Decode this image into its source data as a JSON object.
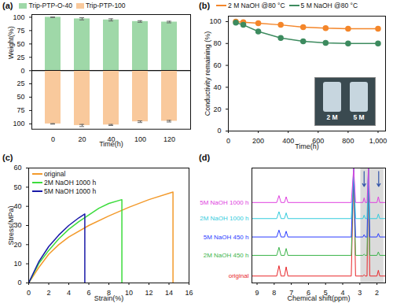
{
  "chart_data": [
    {
      "type": "bar",
      "title": "(a)",
      "x_label": "Time(h)",
      "y_label": "Weight(%)",
      "categories": [
        "0",
        "20",
        "40",
        "100",
        "120"
      ],
      "series": [
        {
          "name": "Trip-PTP-O-40",
          "color": "#9fd8a8",
          "values": [
            100,
            97,
            95,
            92,
            91
          ],
          "errors": [
            0.5,
            2,
            2,
            1.5,
            1.5
          ]
        },
        {
          "name": "Trip-PTP-100",
          "color": "#f9c99c",
          "values": [
            100,
            103,
            102,
            96,
            95
          ],
          "errors": [
            0.5,
            2,
            1,
            1.5,
            1.5
          ],
          "axis": "y2"
        }
      ],
      "ylim": [
        0,
        105
      ],
      "yticks": [
        0,
        25,
        50,
        75,
        100
      ],
      "y2lim": [
        0,
        110
      ],
      "y2ticks": [
        25,
        50,
        75,
        100
      ],
      "legend": "top"
    },
    {
      "type": "line",
      "title": "(b)",
      "x_label": "Time(h)",
      "y_label": "Conductivity remaining (%)",
      "xlim": [
        0,
        1050
      ],
      "xticks": [
        0,
        200,
        400,
        600,
        800,
        1000
      ],
      "ylim": [
        0,
        105
      ],
      "yticks": [
        0,
        20,
        40,
        60,
        80,
        100
      ],
      "marker": "circle",
      "legend": "top",
      "series": [
        {
          "name": "2 M NaOH @80 °C",
          "color": "#f4862a",
          "x": [
            50,
            100,
            200,
            350,
            500,
            650,
            800,
            1000
          ],
          "values": [
            100,
            99.5,
            98.5,
            97,
            95,
            94,
            93.5,
            93.5
          ]
        },
        {
          "name": "5 M NaOH @80 °C",
          "color": "#3d8b5f",
          "x": [
            50,
            100,
            200,
            350,
            500,
            650,
            800,
            1000
          ],
          "values": [
            99,
            97,
            91,
            85,
            82,
            80.5,
            80,
            80
          ]
        }
      ],
      "annotations": [
        "2 M",
        "5 M"
      ]
    },
    {
      "type": "line",
      "title": "(c)",
      "x_label": "Strain(%)",
      "y_label": "Stress(MPa)",
      "xlim": [
        0,
        16
      ],
      "xticks": [
        0,
        2,
        4,
        6,
        8,
        10,
        12,
        14,
        16
      ],
      "ylim": [
        0,
        60
      ],
      "yticks": [
        0,
        10,
        20,
        30,
        40,
        50,
        60
      ],
      "legend": "top-left",
      "series": [
        {
          "name": "original",
          "color": "#f39a2b",
          "x": [
            0,
            1,
            2,
            3,
            4,
            6,
            8,
            10,
            12,
            14.4,
            14.4
          ],
          "values": [
            0,
            8,
            15,
            20,
            24,
            30,
            35,
            39.5,
            43.5,
            47.5,
            0
          ]
        },
        {
          "name": "2M NaOH 1000 h",
          "color": "#3ddc3d",
          "x": [
            0,
            1,
            2,
            3,
            4,
            5,
            6,
            7,
            8,
            9.3,
            9.3
          ],
          "values": [
            0,
            10,
            17,
            23,
            28,
            32,
            35.5,
            39,
            41.5,
            43.5,
            0
          ]
        },
        {
          "name": "5M NaOH 1000 h",
          "color": "#1a1aa8",
          "x": [
            0,
            1,
            2,
            3,
            4,
            5,
            5.6,
            5.6
          ],
          "values": [
            0,
            11,
            19,
            25,
            30,
            34,
            36,
            0
          ]
        }
      ]
    },
    {
      "type": "line",
      "title": "(d)",
      "x_label": "Chemical shift(ppm)",
      "xlim": [
        9.3,
        1.5
      ],
      "xticks": [
        9,
        8,
        7,
        6,
        5,
        4,
        3,
        2
      ],
      "ylim": [
        0,
        100
      ],
      "tick_labels": "x",
      "x": [
        9.3,
        7.85,
        7.72,
        7.6,
        7.4,
        7.3,
        7.2,
        3.5,
        3.36,
        3.25,
        2.82,
        2.75,
        2.68,
        2.58,
        2.5,
        2.42,
        2.0,
        1.92,
        1.84,
        1.5
      ],
      "series": [
        {
          "name": "original",
          "color": "#e8262a",
          "values": [
            6,
            6,
            15,
            6,
            6,
            14,
            6,
            6,
            100,
            6,
            6,
            7,
            6,
            6,
            100,
            6,
            6,
            11,
            6,
            6
          ]
        },
        {
          "name": "2M NaOH 450 h",
          "color": "#3cb44b",
          "values": [
            24,
            24,
            31,
            24,
            24,
            30,
            24,
            24,
            100,
            24,
            24,
            25,
            24,
            24,
            100,
            24,
            24,
            27,
            24,
            24
          ]
        },
        {
          "name": "5M NaOH 450 h",
          "color": "#2a3cff",
          "values": [
            40,
            40,
            46,
            40,
            40,
            45,
            40,
            40,
            100,
            40,
            40,
            42,
            40,
            40,
            100,
            40,
            40,
            43,
            40,
            40
          ]
        },
        {
          "name": "2M NaOH 1000 h",
          "color": "#33ccdd",
          "values": [
            56,
            56,
            62,
            56,
            56,
            61,
            56,
            56,
            100,
            56,
            56,
            59,
            56,
            56,
            100,
            56,
            56,
            60,
            56,
            56
          ]
        },
        {
          "name": "5M NaOH 1000 h",
          "color": "#e040e0",
          "values": [
            70,
            70,
            76,
            70,
            70,
            75,
            70,
            70,
            100,
            70,
            70,
            74,
            70,
            70,
            100,
            70,
            70,
            75,
            70,
            70
          ]
        }
      ],
      "shaded_x": [
        2.95,
        1.6
      ],
      "arrows_x": [
        2.75,
        1.9
      ]
    }
  ]
}
